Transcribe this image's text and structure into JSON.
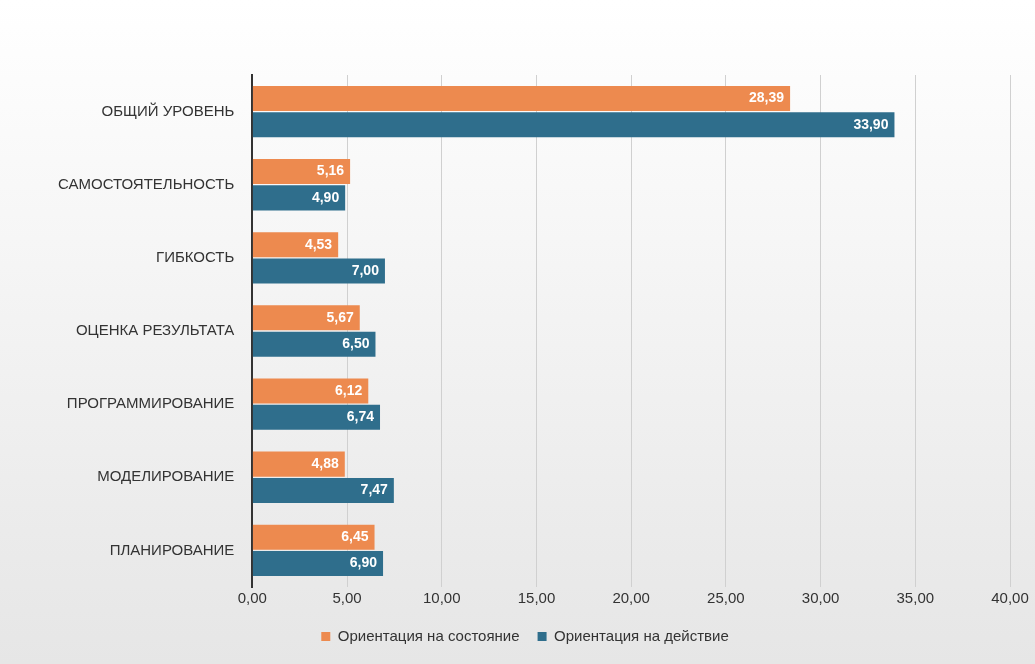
{
  "chart_data": {
    "type": "bar",
    "orientation": "horizontal",
    "categories": [
      "ОБЩИЙ УРОВЕНЬ",
      "САМОСТОЯТЕЛЬНОСТЬ",
      "ГИБКОСТЬ",
      "ОЦЕНКА РЕЗУЛЬТАТА",
      "ПРОГРАММИРОВАНИЕ",
      "МОДЕЛИРОВАНИЕ",
      "ПЛАНИРОВАНИЕ"
    ],
    "series": [
      {
        "name": "Ориентация на состояние",
        "color": "#ed8a4f",
        "values": [
          28.39,
          5.16,
          4.53,
          5.67,
          6.12,
          4.88,
          6.45
        ],
        "value_labels": [
          "28,39",
          "5,16",
          "4,53",
          "5,67",
          "6,12",
          "4,88",
          "6,45"
        ]
      },
      {
        "name": "Ориентация на действие",
        "color": "#2f6e8c",
        "values": [
          33.9,
          4.9,
          7.0,
          6.5,
          6.74,
          7.47,
          6.9
        ],
        "value_labels": [
          "33,90",
          "4,90",
          "7,00",
          "6,50",
          "6,74",
          "7,47",
          "6,90"
        ]
      }
    ],
    "xlim": [
      0,
      40
    ],
    "xticks": [
      {
        "value": 0,
        "label": "0,00"
      },
      {
        "value": 5,
        "label": "5,00"
      },
      {
        "value": 10,
        "label": "10,00"
      },
      {
        "value": 15,
        "label": "15,00"
      },
      {
        "value": 20,
        "label": "20,00"
      },
      {
        "value": 25,
        "label": "25,00"
      },
      {
        "value": 30,
        "label": "30,00"
      },
      {
        "value": 35,
        "label": "35,00"
      },
      {
        "value": 40,
        "label": "40,00"
      }
    ],
    "grid": "x",
    "legend": "bottom"
  }
}
